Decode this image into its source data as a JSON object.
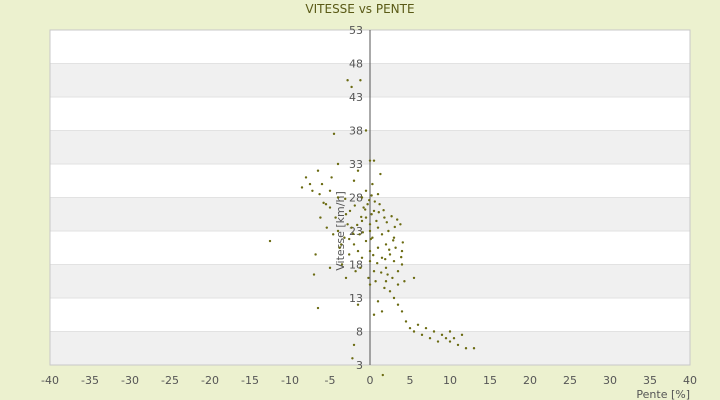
{
  "chart_data": {
    "type": "scatter",
    "title": "VITESSE vs PENTE",
    "xlabel": "Pente [%]",
    "ylabel": "Vitesse [km/h]",
    "xlim": [
      -40,
      40
    ],
    "ylim": [
      3,
      53
    ],
    "x_ticks": [
      -40,
      -35,
      -30,
      -25,
      -20,
      -15,
      -10,
      -5,
      0,
      5,
      10,
      15,
      20,
      25,
      30,
      35,
      40
    ],
    "y_ticks": [
      3,
      8,
      13,
      18,
      23,
      28,
      33,
      38,
      43,
      48,
      53
    ],
    "grid": "horizontal banded",
    "legend": "none",
    "colors": {
      "point": "#6b6b12",
      "background": "#ecf1cf",
      "plot_band": "#f0f0f0",
      "plot_bg": "#ffffff",
      "axis_text": "#555555"
    },
    "points": [
      [
        -12.5,
        21.5
      ],
      [
        -7,
        16.5
      ],
      [
        -6.8,
        19.5
      ],
      [
        -6.5,
        32
      ],
      [
        -6,
        30
      ],
      [
        -5.5,
        27
      ],
      [
        -5,
        29
      ],
      [
        -4.5,
        37.5
      ],
      [
        -4,
        33
      ],
      [
        -4,
        28
      ],
      [
        -7.5,
        30
      ],
      [
        -8,
        31
      ],
      [
        -8.5,
        29.5
      ],
      [
        -7.2,
        29
      ],
      [
        -6.3,
        28.5
      ],
      [
        -5.8,
        27.2
      ],
      [
        -5,
        26.5
      ],
      [
        -4.8,
        31
      ],
      [
        -4.3,
        25
      ],
      [
        -4,
        23
      ],
      [
        -3.8,
        20.5
      ],
      [
        -3.5,
        18
      ],
      [
        -3.2,
        22
      ],
      [
        -3,
        25.5
      ],
      [
        -2.8,
        24
      ],
      [
        -2.5,
        26
      ],
      [
        -2.3,
        23.5
      ],
      [
        -2,
        21
      ],
      [
        -1.8,
        17
      ],
      [
        -1.5,
        20
      ],
      [
        -1.3,
        22.5
      ],
      [
        -1,
        24.5
      ],
      [
        -1,
        19
      ],
      [
        -0.8,
        26.5
      ],
      [
        -0.5,
        25
      ],
      [
        -0.5,
        21.5
      ],
      [
        -0.3,
        27
      ],
      [
        0,
        23
      ],
      [
        0,
        24
      ],
      [
        0,
        20
      ],
      [
        0,
        18.5
      ],
      [
        0.2,
        25.5
      ],
      [
        0.3,
        22
      ],
      [
        0.5,
        26
      ],
      [
        0.5,
        17
      ],
      [
        0.8,
        24.5
      ],
      [
        1,
        23.5
      ],
      [
        1,
        20.5
      ],
      [
        1.2,
        27
      ],
      [
        1.5,
        22.5
      ],
      [
        1.5,
        19
      ],
      [
        1.8,
        25
      ],
      [
        2,
        21
      ],
      [
        2,
        17.5
      ],
      [
        2.3,
        23
      ],
      [
        2.5,
        19.5
      ],
      [
        2.8,
        16
      ],
      [
        3,
        22
      ],
      [
        3,
        18.5
      ],
      [
        3.2,
        20.5
      ],
      [
        3.5,
        17
      ],
      [
        3.8,
        24
      ],
      [
        4,
        20
      ],
      [
        4,
        18
      ],
      [
        -2,
        30.5
      ],
      [
        -1.5,
        32
      ],
      [
        -0.5,
        29
      ],
      [
        0.3,
        30
      ],
      [
        1,
        28.5
      ],
      [
        1.3,
        31.5
      ],
      [
        -1,
        28
      ],
      [
        -2.8,
        45.5
      ],
      [
        -2.3,
        44.5
      ],
      [
        -1.2,
        45.5
      ],
      [
        -0.5,
        38
      ],
      [
        0,
        33.5
      ],
      [
        0.5,
        33.5
      ],
      [
        2,
        15.5
      ],
      [
        2.5,
        14
      ],
      [
        3,
        13
      ],
      [
        3.5,
        12
      ],
      [
        4,
        11
      ],
      [
        4.5,
        9.5
      ],
      [
        5,
        8.5
      ],
      [
        5.5,
        8
      ],
      [
        6,
        9
      ],
      [
        6.5,
        7.5
      ],
      [
        7,
        8.5
      ],
      [
        7.5,
        7
      ],
      [
        8,
        8
      ],
      [
        8.5,
        6.5
      ],
      [
        9,
        7.5
      ],
      [
        9.5,
        7
      ],
      [
        10,
        8
      ],
      [
        10,
        6.5
      ],
      [
        10.5,
        7
      ],
      [
        11,
        6
      ],
      [
        11.5,
        7.5
      ],
      [
        12,
        5.5
      ],
      [
        13,
        5.5
      ],
      [
        1,
        12.5
      ],
      [
        1.5,
        11
      ],
      [
        0.5,
        10.5
      ],
      [
        -1.5,
        12
      ],
      [
        -2,
        6
      ],
      [
        -2.2,
        4
      ],
      [
        1.6,
        1.5
      ],
      [
        -6.5,
        11.5
      ],
      [
        -5,
        17.5
      ],
      [
        -3,
        16
      ],
      [
        0,
        15
      ],
      [
        1.8,
        14.5
      ],
      [
        3.5,
        15
      ],
      [
        5.5,
        16
      ],
      [
        4.3,
        15.5
      ],
      [
        2.2,
        16.5
      ],
      [
        0.7,
        15.5
      ],
      [
        -0.2,
        16
      ],
      [
        -1.2,
        17.5
      ],
      [
        -2.6,
        19.5
      ],
      [
        -3.6,
        21
      ],
      [
        -4.6,
        22.5
      ],
      [
        -5.4,
        23.5
      ],
      [
        -6.2,
        25
      ],
      [
        -3.1,
        27.8
      ],
      [
        -1.9,
        26.8
      ],
      [
        -0.9,
        22.8
      ],
      [
        0.1,
        21.8
      ],
      [
        1.1,
        25.8
      ],
      [
        2.1,
        24.3
      ],
      [
        3.1,
        23.6
      ],
      [
        4.1,
        21.3
      ],
      [
        0.4,
        19.4
      ],
      [
        0.9,
        18.2
      ],
      [
        1.4,
        16.8
      ],
      [
        1.9,
        18.8
      ],
      [
        2.4,
        20.2
      ],
      [
        2.9,
        21.6
      ],
      [
        -0.1,
        27.6
      ],
      [
        -0.6,
        26.2
      ],
      [
        -1.1,
        25.1
      ],
      [
        -1.6,
        23.9
      ],
      [
        -2.1,
        22.6
      ],
      [
        -2.6,
        21.8
      ],
      [
        0.2,
        28.3
      ],
      [
        0.6,
        27.4
      ],
      [
        1.7,
        26.1
      ],
      [
        2.7,
        25.2
      ],
      [
        3.4,
        24.7
      ],
      [
        3.9,
        19.1
      ]
    ]
  }
}
